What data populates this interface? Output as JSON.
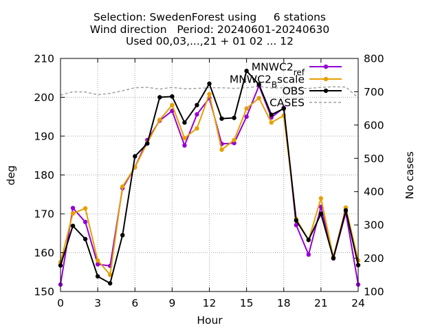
{
  "chart_data": {
    "type": "line",
    "title_lines": [
      "Selection: SwedenForest using     6 stations",
      "Wind direction   Period: 20240601-20240630",
      "Used 00,03,...,21 + 01 02 ... 12"
    ],
    "xlabel": "Hour",
    "ylabel": "deg",
    "y2label": "No cases",
    "xlim": [
      0,
      24
    ],
    "ylim": [
      150,
      210
    ],
    "y2lim": [
      100,
      800
    ],
    "xticks": [
      "0",
      "3",
      "6",
      "9",
      "12",
      "15",
      "18",
      "21",
      "24"
    ],
    "yticks": [
      "150",
      "160",
      "170",
      "180",
      "190",
      "200",
      "210"
    ],
    "y2ticks": [
      "100",
      "200",
      "300",
      "400",
      "500",
      "600",
      "700",
      "800"
    ],
    "grid": true,
    "legend_position": "top-right",
    "x": [
      0,
      1,
      2,
      3,
      4,
      5,
      6,
      7,
      8,
      9,
      10,
      11,
      12,
      13,
      14,
      15,
      16,
      17,
      18,
      19,
      20,
      21,
      22,
      23,
      24
    ],
    "series": [
      {
        "name": "MNWC2_ref",
        "legend_main": "MNWC2",
        "legend_sub": "ref",
        "color": "#9400d3",
        "axis": "left",
        "values": [
          151.8,
          171.5,
          167.9,
          157.0,
          156.6,
          176.6,
          182.0,
          189.0,
          194.0,
          196.5,
          187.6,
          195.6,
          199.8,
          188.0,
          188.2,
          195.0,
          203.0,
          194.8,
          197.3,
          167.1,
          159.5,
          171.8,
          158.5,
          170.3,
          151.8
        ]
      },
      {
        "name": "MNWC2_Bscale",
        "legend_main": "MNWC2",
        "legend_sub": "B",
        "legend_tail": "scale",
        "color": "#e69f00",
        "axis": "left",
        "values": [
          157.5,
          170.1,
          171.4,
          158.0,
          154.3,
          177.0,
          182.0,
          188.3,
          194.2,
          198.0,
          189.5,
          192.0,
          200.8,
          186.5,
          189.0,
          197.1,
          199.8,
          193.5,
          195.3,
          168.7,
          163.2,
          174.0,
          158.8,
          171.6,
          158.0
        ]
      },
      {
        "name": "OBS",
        "color": "#000000",
        "axis": "left",
        "values": [
          156.7,
          166.9,
          163.5,
          153.9,
          152.1,
          164.5,
          184.8,
          188.1,
          200.0,
          200.2,
          193.5,
          198.0,
          203.5,
          194.5,
          194.7,
          206.8,
          203.3,
          195.5,
          197.1,
          168.3,
          163.3,
          170.0,
          158.6,
          170.9,
          156.8
        ]
      },
      {
        "name": "CASES",
        "color": "#a0a0a0",
        "axis": "right",
        "values": [
          690,
          700,
          699,
          691,
          695,
          703,
          712,
          713,
          708,
          713,
          709,
          710,
          712,
          712,
          710,
          712,
          716,
          711,
          712,
          710,
          710,
          713,
          715,
          714,
          682
        ]
      }
    ]
  }
}
